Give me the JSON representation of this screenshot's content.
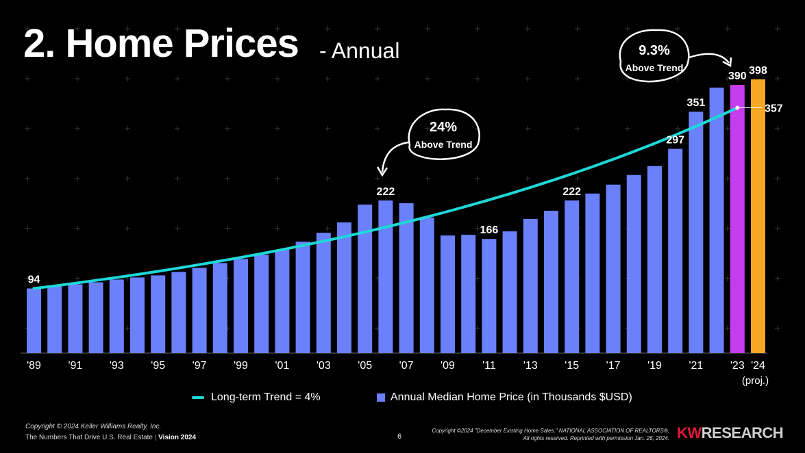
{
  "header": {
    "title": "2. Home Prices",
    "subtitle": "- Annual"
  },
  "colors": {
    "bar": "#6b80fb",
    "bar_2023": "#c63cf0",
    "bar_2024": "#f5a623",
    "trend": "#1ed8d8",
    "grid": "#3a3a3a",
    "background": "#000000",
    "brand_red": "#e31937"
  },
  "chart_data": {
    "type": "bar",
    "categories": [
      "'89",
      "'90",
      "'91",
      "'92",
      "'93",
      "'94",
      "'95",
      "'96",
      "'97",
      "'98",
      "'99",
      "'00",
      "'01",
      "'02",
      "'03",
      "'04",
      "'05",
      "'06",
      "'07",
      "'08",
      "'09",
      "'10",
      "'11",
      "'12",
      "'13",
      "'14",
      "'15",
      "'16",
      "'17",
      "'18",
      "'19",
      "'20",
      "'21",
      "'22",
      "'23",
      "'24"
    ],
    "x_tick_labels": [
      "'89",
      "",
      "'91",
      "",
      "'93",
      "",
      "'95",
      "",
      "'97",
      "",
      "'99",
      "",
      "'01",
      "",
      "'03",
      "",
      "'05",
      "",
      "'07",
      "",
      "'09",
      "",
      "'11",
      "",
      "'13",
      "",
      "'15",
      "",
      "'17",
      "",
      "'19",
      "",
      "'21",
      "",
      "'23",
      "'24"
    ],
    "x_tick_sublabel": "(proj.)",
    "series": [
      {
        "name": "Annual Median Home Price (in Thousands $USD)",
        "values": [
          94,
          97,
          100,
          103,
          107,
          110,
          113,
          118,
          124,
          131,
          137,
          143,
          150,
          162,
          175,
          190,
          216,
          222,
          218,
          197,
          171,
          172,
          166,
          177,
          195,
          207,
          222,
          232,
          245,
          259,
          272,
          297,
          351,
          386,
          390,
          398
        ],
        "data_labels": {
          "0": "94",
          "11": "",
          "17": "222",
          "22": "166",
          "26": "222",
          "31": "297",
          "32": "351",
          "34": "390",
          "35": "398"
        }
      },
      {
        "name": "Long-term Trend = 4%",
        "type": "line",
        "start_value": 94,
        "growth_rate": 0.04,
        "end_index": 34,
        "end_label": "357"
      }
    ],
    "ylim": [
      0,
      420
    ],
    "grid": true
  },
  "annotations": [
    {
      "pct": "24%",
      "text": "Above Trend"
    },
    {
      "pct": "9.3%",
      "text": "Above Trend"
    }
  ],
  "legend": {
    "trend_label": "Long-term Trend = 4%",
    "bar_label": "Annual Median Home Price (in Thousands $USD)"
  },
  "footer": {
    "copyright": "Copyright © 2024 Keller Williams Realty, Inc.",
    "tagline": "The Numbers That Drive U.S. Real Estate",
    "vision": "Vision 2024",
    "page": "6",
    "source_line1": "Copyright ©2024 \"December Existing Home Sales.\" NATIONAL ASSOCIATION OF REALTORS®.",
    "source_line2": "All rights reserved. Reprinted with permission Jan. 26, 2024.",
    "brand_kw": "KW",
    "brand_research": "RESEARCH"
  }
}
